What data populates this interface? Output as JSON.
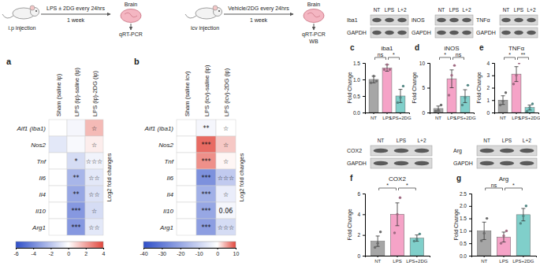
{
  "chart_data": [
    {
      "type": "heatmap",
      "panel": "a",
      "columns": [
        "Sham (saline ip)",
        "LPS (ip)-saline (ip)",
        "LPS (ip)-2DG (ip)"
      ],
      "rows": [
        "Aif1 (iba1)",
        "Nos2",
        "Tnf",
        "Il6",
        "Il4",
        "Il10",
        "Arg1"
      ],
      "cells": [
        [
          0,
          -0.3,
          1.5
        ],
        [
          -0.8,
          -0.2,
          0.4
        ],
        [
          0,
          -1.2,
          -0.4
        ],
        [
          0,
          -2.5,
          -0.8
        ],
        [
          0,
          -3,
          -1
        ],
        [
          0,
          -3.5,
          -1.2
        ],
        [
          0,
          -3.5,
          -0.8
        ]
      ],
      "annotations": [
        [
          null,
          null,
          "☆"
        ],
        [
          null,
          null,
          "☆"
        ],
        [
          null,
          "*",
          "☆☆☆"
        ],
        [
          null,
          "**",
          "☆☆"
        ],
        [
          null,
          "**",
          "☆☆"
        ],
        [
          null,
          "***",
          "☆"
        ],
        [
          null,
          "***",
          "☆☆"
        ]
      ],
      "colorbar": {
        "label": "Log2 fold changes",
        "range": [
          -6,
          4
        ],
        "ticks": [
          -6,
          -4,
          -2,
          0,
          2,
          4
        ]
      }
    },
    {
      "type": "heatmap",
      "panel": "b",
      "columns": [
        "Sham (saline icv)",
        "LPS (icv)-saline (ip)",
        "LPS (icv)-2DG (ip)"
      ],
      "rows": [
        "Aif1 (iba1)",
        "Nos2",
        "Tnf",
        "Il6",
        "Il4",
        "Il10",
        "Arg1"
      ],
      "cells": [
        [
          0,
          -2,
          0
        ],
        [
          0,
          8,
          3
        ],
        [
          0,
          6,
          0.5
        ],
        [
          0,
          -25,
          -12
        ],
        [
          0,
          -18,
          -4
        ],
        [
          0,
          -20,
          -2
        ],
        [
          0,
          -22,
          -8
        ]
      ],
      "annotations": [
        [
          null,
          "**",
          "☆"
        ],
        [
          null,
          "***",
          "☆"
        ],
        [
          null,
          "***",
          "☆"
        ],
        [
          null,
          "***",
          "☆☆☆"
        ],
        [
          null,
          "***",
          "☆"
        ],
        [
          null,
          "***",
          "0.06"
        ],
        [
          null,
          "***",
          "☆☆☆"
        ]
      ],
      "colorbar": {
        "label": "Log2 fold changes",
        "range": [
          -40,
          10
        ],
        "ticks": [
          -40,
          -30,
          -20,
          -10,
          0,
          10
        ]
      }
    },
    {
      "type": "bar",
      "panel": "c",
      "title": "iba1",
      "ylabel": "Fold Change",
      "categories": [
        "NT",
        "LPS",
        "LPS+2DG"
      ],
      "values": [
        1.0,
        1.35,
        0.5
      ],
      "errors": [
        0.1,
        0.1,
        0.2
      ],
      "points": [
        [
          0.9,
          1.1,
          0.95
        ],
        [
          1.3,
          1.45,
          1.3
        ],
        [
          0.3,
          0.45,
          0.8
        ]
      ],
      "colors": [
        "#a6a6a6",
        "#f5a3c7",
        "#80cfca"
      ],
      "ylim": [
        0,
        1.5
      ],
      "yticks": [
        {
          "value": 0,
          "label": "0.0"
        },
        0.5,
        {
          "value": 1,
          "label": "1.0"
        },
        1.5
      ],
      "comparisons": [
        {
          "pair": [
            "NT",
            "LPS"
          ],
          "label": "ns"
        },
        {
          "pair": [
            "LPS",
            "LPS+2DG"
          ],
          "label": "*"
        }
      ]
    },
    {
      "type": "bar",
      "panel": "d",
      "title": "iNOS",
      "ylabel": "Fold Change",
      "categories": [
        "NT",
        "LPS",
        "LPS+2DG"
      ],
      "values": [
        0.8,
        6.8,
        3.3
      ],
      "errors": [
        0.5,
        1.8,
        1.3
      ],
      "points": [
        [
          0.3,
          0.5,
          1.5
        ],
        [
          3.5,
          7.5,
          9.5
        ],
        [
          1.5,
          3.0,
          5.5
        ]
      ],
      "colors": [
        "#a6a6a6",
        "#f5a3c7",
        "#80cfca"
      ],
      "ylim": [
        0,
        10
      ],
      "yticks": [
        0,
        5,
        10
      ],
      "comparisons": [
        {
          "pair": [
            "NT",
            "LPS"
          ],
          "label": "*"
        },
        {
          "pair": [
            "LPS",
            "LPS+2DG"
          ],
          "label": "ns"
        }
      ]
    },
    {
      "type": "bar",
      "panel": "e",
      "title": "TNFα",
      "ylabel": "Fold Change",
      "categories": [
        "NT",
        "LPS",
        "LPS+2DG"
      ],
      "values": [
        1.0,
        3.1,
        0.4
      ],
      "errors": [
        0.35,
        0.6,
        0.2
      ],
      "points": [
        [
          0.6,
          0.9,
          1.6
        ],
        [
          2.3,
          3.0,
          4.0
        ],
        [
          0.1,
          0.4,
          0.7
        ]
      ],
      "colors": [
        "#a6a6a6",
        "#f5a3c7",
        "#80cfca"
      ],
      "ylim": [
        0,
        4
      ],
      "yticks": [
        0,
        1,
        2,
        3,
        4
      ],
      "comparisons": [
        {
          "pair": [
            "NT",
            "LPS"
          ],
          "label": "*"
        },
        {
          "pair": [
            "LPS",
            "LPS+2DG"
          ],
          "label": "**"
        }
      ]
    },
    {
      "type": "bar",
      "panel": "f",
      "title": "COX2",
      "ylabel": "Fold Change",
      "categories": [
        "NT",
        "LPS",
        "LPS+2DG"
      ],
      "values": [
        1.4,
        4.0,
        1.7
      ],
      "errors": [
        0.5,
        1.1,
        0.3
      ],
      "points": [
        [
          0.8,
          1.2,
          2.3
        ],
        [
          2.2,
          4.0,
          5.6
        ],
        [
          1.4,
          1.6,
          2.1
        ]
      ],
      "colors": [
        "#a6a6a6",
        "#f5a3c7",
        "#80cfca"
      ],
      "ylim": [
        0,
        6
      ],
      "yticks": [
        0,
        2,
        4,
        6
      ],
      "comparisons": [
        {
          "pair": [
            "NT",
            "LPS"
          ],
          "label": "*"
        },
        {
          "pair": [
            "LPS",
            "LPS+2DG"
          ],
          "label": "*"
        }
      ]
    },
    {
      "type": "bar",
      "panel": "g",
      "title": "Arg",
      "ylabel": "Fold Change",
      "categories": [
        "NT",
        "LPS",
        "LPS+2DG"
      ],
      "values": [
        1.0,
        0.75,
        1.65
      ],
      "errors": [
        0.35,
        0.2,
        0.25
      ],
      "points": [
        [
          0.6,
          0.9,
          1.5
        ],
        [
          0.5,
          0.8,
          1.0
        ],
        [
          1.3,
          1.6,
          2.0
        ]
      ],
      "colors": [
        "#a6a6a6",
        "#f5a3c7",
        "#80cfca"
      ],
      "ylim": [
        0,
        2.5
      ],
      "yticks": [
        {
          "value": 0,
          "label": "0.0"
        },
        0.5,
        {
          "value": 1,
          "label": "1.0"
        },
        1.5,
        {
          "value": 2,
          "label": "2.0"
        },
        2.5
      ],
      "comparisons": [
        {
          "pair": [
            "NT",
            "LPS"
          ],
          "label": "ns"
        },
        {
          "pair": [
            "LPS",
            "LPS+2DG"
          ],
          "label": "*"
        }
      ]
    }
  ],
  "schematics": [
    {
      "injection": "i.p injection",
      "treatment": "LPS ± 2DG every 24hrs",
      "duration": "1 week",
      "tissue": "Brain",
      "assays": [
        "qRT-PCR"
      ]
    },
    {
      "injection": "icv injection",
      "treatment": "Vehicle/2DG every 24hrs",
      "duration": "1 week",
      "tissue": "Brain",
      "assays": [
        "qRT-PCR",
        "WB"
      ]
    }
  ],
  "blots": [
    {
      "protein": "Iba1",
      "loading": "GAPDH",
      "lanes": [
        "NT",
        "LPS",
        "L+2"
      ]
    },
    {
      "protein": "iNOS",
      "loading": "GAPDH",
      "lanes": [
        "NT",
        "LPS",
        "L+2"
      ]
    },
    {
      "protein": "TNFα",
      "loading": "GAPDH",
      "lanes": [
        "NT",
        "LPS",
        "L+2"
      ]
    },
    {
      "protein": "COX2",
      "loading": "GAPDH",
      "lanes": [
        "NT",
        "LPS",
        "L+2"
      ]
    },
    {
      "protein": "Arg",
      "loading": "GAPDH",
      "lanes": [
        "NT",
        "LPS",
        "L+2"
      ]
    }
  ]
}
